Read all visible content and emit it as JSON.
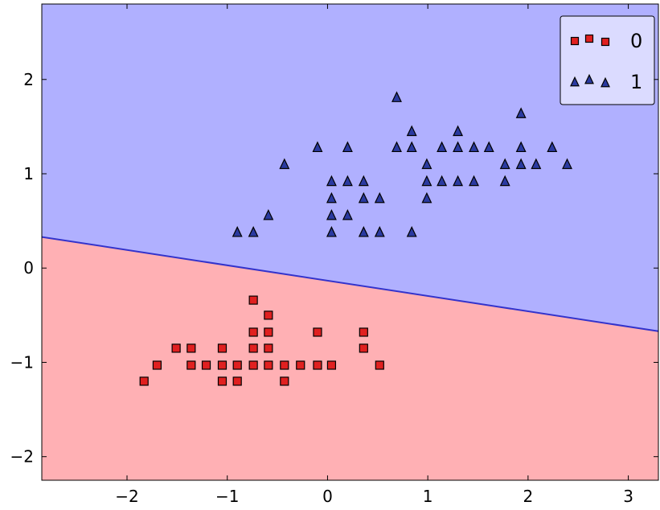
{
  "chart_data": {
    "type": "scatter",
    "title": "",
    "xlabel": "",
    "ylabel": "",
    "xlim": [
      -2.85,
      3.3
    ],
    "ylim": [
      -2.25,
      2.8
    ],
    "grid": false,
    "legend_position": "top-right",
    "decision_boundary": {
      "x": [
        -2.85,
        3.3
      ],
      "y": [
        0.33,
        -0.67
      ],
      "line_color": "#3333cc"
    },
    "regions": [
      {
        "label": "1",
        "side": "above",
        "color": "#b0b0ff"
      },
      {
        "label": "0",
        "side": "below",
        "color": "#ffb0b4"
      }
    ],
    "xticks": [
      -2,
      -1,
      0,
      1,
      2,
      3
    ],
    "yticks": [
      -2,
      -1,
      0,
      1,
      2
    ],
    "series": [
      {
        "name": "0",
        "marker": "square",
        "color": "#e02020",
        "points": [
          [
            -1.83,
            -1.2
          ],
          [
            -1.7,
            -1.03
          ],
          [
            -1.36,
            -1.03
          ],
          [
            -1.21,
            -1.03
          ],
          [
            -1.05,
            -1.03
          ],
          [
            -0.9,
            -1.03
          ],
          [
            -0.74,
            -1.03
          ],
          [
            -0.59,
            -1.03
          ],
          [
            -0.43,
            -1.03
          ],
          [
            -0.27,
            -1.03
          ],
          [
            -0.1,
            -1.03
          ],
          [
            0.04,
            -1.03
          ],
          [
            0.52,
            -1.03
          ],
          [
            -1.51,
            -0.85
          ],
          [
            -1.36,
            -0.85
          ],
          [
            -1.05,
            -0.85
          ],
          [
            -0.74,
            -0.85
          ],
          [
            -0.59,
            -0.85
          ],
          [
            0.36,
            -0.85
          ],
          [
            -1.05,
            -1.2
          ],
          [
            -0.9,
            -1.2
          ],
          [
            -0.43,
            -1.2
          ],
          [
            -0.74,
            -0.68
          ],
          [
            -0.59,
            -0.68
          ],
          [
            -0.1,
            -0.68
          ],
          [
            0.36,
            -0.68
          ],
          [
            -0.59,
            -0.5
          ],
          [
            -0.74,
            -0.34
          ]
        ]
      },
      {
        "name": "1",
        "marker": "triangle",
        "color": "#2a3aa0",
        "points": [
          [
            0.69,
            1.81
          ],
          [
            1.93,
            1.64
          ],
          [
            0.84,
            1.45
          ],
          [
            1.3,
            1.45
          ],
          [
            -0.1,
            1.28
          ],
          [
            0.2,
            1.28
          ],
          [
            0.69,
            1.28
          ],
          [
            0.84,
            1.28
          ],
          [
            1.14,
            1.28
          ],
          [
            1.3,
            1.28
          ],
          [
            1.46,
            1.28
          ],
          [
            1.61,
            1.28
          ],
          [
            1.93,
            1.28
          ],
          [
            2.24,
            1.28
          ],
          [
            -0.43,
            1.1
          ],
          [
            0.99,
            1.1
          ],
          [
            1.77,
            1.1
          ],
          [
            1.93,
            1.1
          ],
          [
            2.08,
            1.1
          ],
          [
            2.39,
            1.1
          ],
          [
            0.04,
            0.92
          ],
          [
            0.2,
            0.92
          ],
          [
            0.36,
            0.92
          ],
          [
            0.99,
            0.92
          ],
          [
            1.14,
            0.92
          ],
          [
            1.3,
            0.92
          ],
          [
            1.46,
            0.92
          ],
          [
            1.77,
            0.92
          ],
          [
            0.04,
            0.74
          ],
          [
            0.36,
            0.74
          ],
          [
            0.52,
            0.74
          ],
          [
            0.99,
            0.74
          ],
          [
            -0.59,
            0.56
          ],
          [
            0.04,
            0.56
          ],
          [
            0.2,
            0.56
          ],
          [
            -0.9,
            0.38
          ],
          [
            -0.74,
            0.38
          ],
          [
            0.04,
            0.38
          ],
          [
            0.36,
            0.38
          ],
          [
            0.52,
            0.38
          ],
          [
            0.84,
            0.38
          ]
        ]
      }
    ]
  }
}
